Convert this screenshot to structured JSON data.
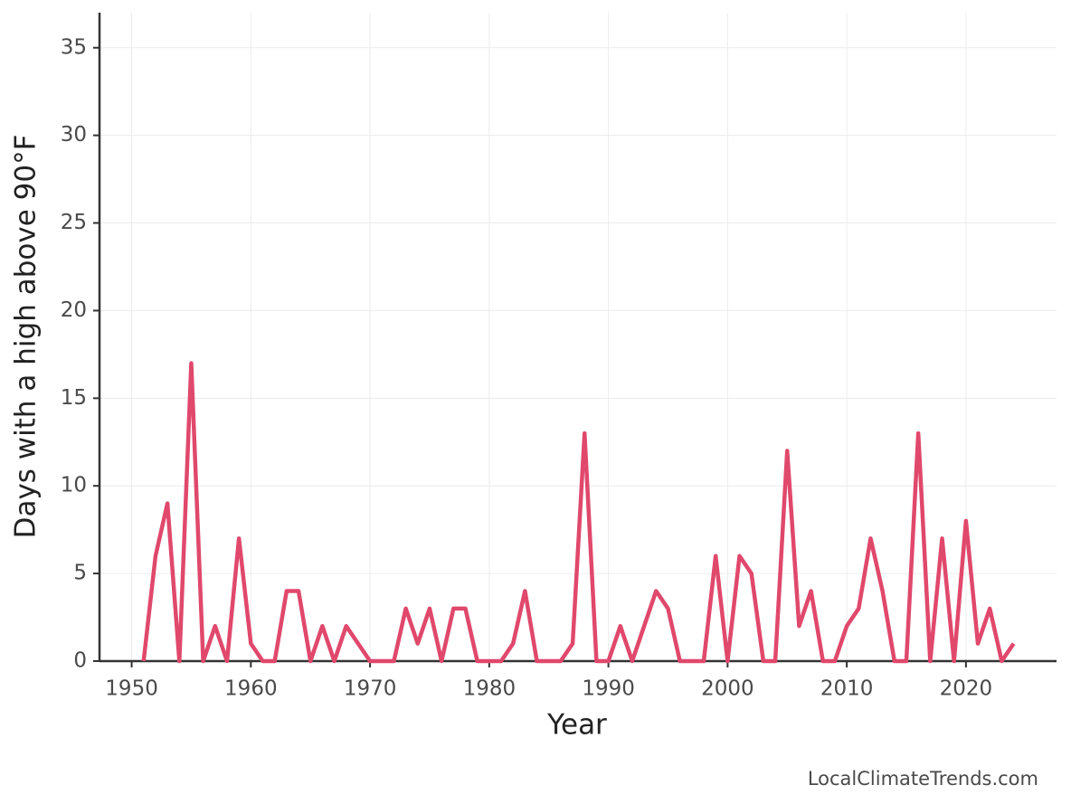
{
  "chart_data": {
    "type": "line",
    "xlabel": "Year",
    "ylabel": "Days with a high above 90°F",
    "source": "LocalClimateTrends.com",
    "x": [
      1951,
      1952,
      1953,
      1954,
      1955,
      1956,
      1957,
      1958,
      1959,
      1960,
      1961,
      1962,
      1963,
      1964,
      1965,
      1966,
      1967,
      1968,
      1969,
      1970,
      1971,
      1972,
      1973,
      1974,
      1975,
      1976,
      1977,
      1978,
      1979,
      1980,
      1981,
      1982,
      1983,
      1984,
      1985,
      1986,
      1987,
      1988,
      1989,
      1990,
      1991,
      1992,
      1993,
      1994,
      1995,
      1996,
      1997,
      1998,
      1999,
      2000,
      2001,
      2002,
      2003,
      2004,
      2005,
      2006,
      2007,
      2008,
      2009,
      2010,
      2011,
      2012,
      2013,
      2014,
      2015,
      2016,
      2017,
      2018,
      2019,
      2020,
      2021,
      2022,
      2023,
      2024
    ],
    "series": [
      {
        "name": "Days with a high above 90°F",
        "color": "#e0486c",
        "values": [
          0,
          6,
          9,
          0,
          17,
          0,
          2,
          0,
          7,
          1,
          0,
          0,
          4,
          4,
          0,
          2,
          0,
          2,
          1,
          0,
          0,
          0,
          3,
          1,
          3,
          0,
          3,
          3,
          0,
          0,
          0,
          1,
          4,
          0,
          0,
          0,
          1,
          13,
          0,
          0,
          2,
          0,
          2,
          4,
          3,
          0,
          0,
          0,
          6,
          0,
          6,
          5,
          0,
          0,
          12,
          2,
          4,
          0,
          0,
          2,
          3,
          7,
          4,
          0,
          0,
          13,
          0,
          7,
          0,
          8,
          1,
          3,
          0,
          1
        ]
      }
    ],
    "xlim": [
      1947.3,
      2027.6
    ],
    "xticks": [
      1950,
      1960,
      1970,
      1980,
      1990,
      2000,
      2010,
      2020
    ],
    "ylim": [
      0,
      37
    ],
    "yticks": [
      0,
      5,
      10,
      15,
      20,
      25,
      30,
      35
    ],
    "grid": true
  }
}
